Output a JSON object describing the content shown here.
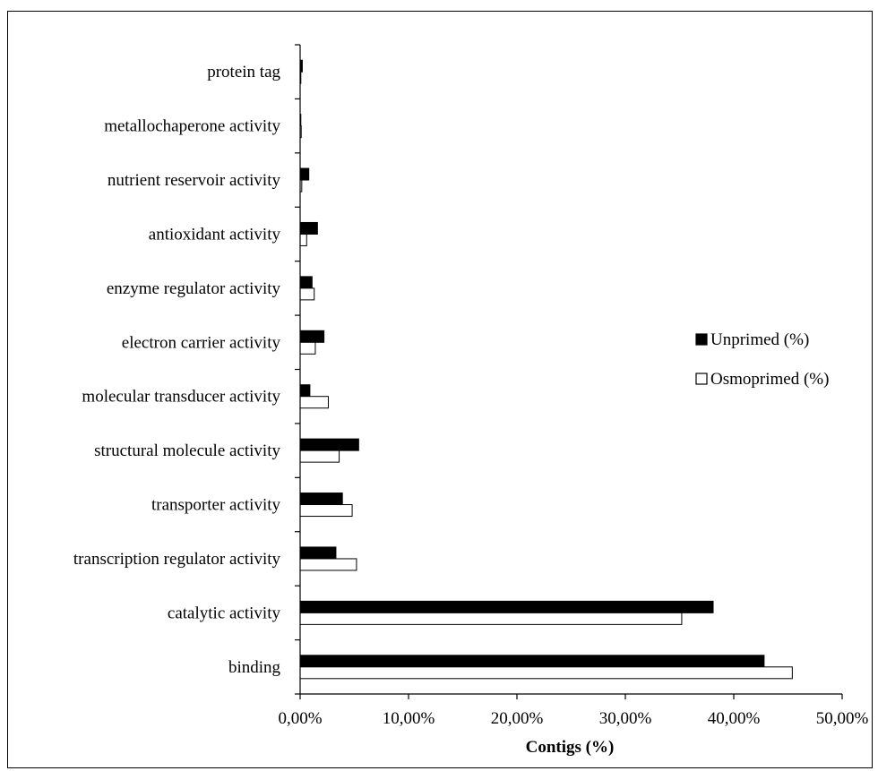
{
  "chart_data": {
    "type": "bar",
    "orientation": "horizontal",
    "categories": [
      "binding",
      "catalytic activity",
      "transcription regulator activity",
      "transporter activity",
      "structural molecule activity",
      "molecular transducer activity",
      "electron carrier activity",
      "enzyme regulator activity",
      "antioxidant activity",
      "nutrient reservoir activity",
      "metallochaperone activity",
      "protein tag"
    ],
    "series": [
      {
        "name": "Unprimed (%)",
        "color": "#000000",
        "values": [
          42.8,
          38.1,
          3.3,
          3.9,
          5.4,
          0.9,
          2.2,
          1.1,
          1.6,
          0.8,
          0.05,
          0.2
        ]
      },
      {
        "name": "Osmoprimed (%)",
        "color": "#ffffff",
        "values": [
          45.4,
          35.2,
          5.2,
          4.8,
          3.6,
          2.6,
          1.4,
          1.3,
          0.6,
          0.15,
          0.1,
          0.05
        ]
      }
    ],
    "xlabel": "Contigs (%)",
    "ylabel": "",
    "xlim": [
      0,
      50
    ],
    "xticks": [
      "0,00%",
      "10,00%",
      "20,00%",
      "30,00%",
      "40,00%",
      "50,00%"
    ],
    "grid": false,
    "legend_position": "right"
  }
}
